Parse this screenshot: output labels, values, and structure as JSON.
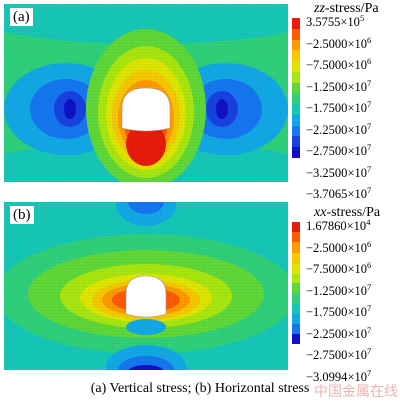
{
  "panels": [
    {
      "id": "a",
      "letter": "(a)",
      "legend_title": "zz-stress/Pa",
      "legend_title_italic": "zz",
      "legend_title_rest": "-stress/Pa",
      "labels": [
        {
          "mantissa": "3.5755",
          "exp": "5"
        },
        {
          "mantissa": "−2.5000",
          "exp": "6"
        },
        {
          "mantissa": "−7.5000",
          "exp": "6"
        },
        {
          "mantissa": "−1.2500",
          "exp": "7"
        },
        {
          "mantissa": "−1.7500",
          "exp": "7"
        },
        {
          "mantissa": "−2.2500",
          "exp": "7"
        },
        {
          "mantissa": "−2.7500",
          "exp": "7"
        },
        {
          "mantissa": "−3.2500",
          "exp": "7"
        },
        {
          "mantissa": "−3.7065",
          "exp": "7"
        }
      ],
      "colors": [
        "#e81b0c",
        "#ff5a00",
        "#ff9a00",
        "#f5c800",
        "#dde600",
        "#a8e610",
        "#5fd838",
        "#2fd07a",
        "#16c7b8",
        "#12a8e6",
        "#1577ef",
        "#1742e0",
        "#1010c8"
      ]
    },
    {
      "id": "b",
      "letter": "(b)",
      "legend_title": "xx-stress/Pa",
      "legend_title_italic": "xx",
      "legend_title_rest": "-stress/Pa",
      "labels": [
        {
          "mantissa": "1.67860",
          "exp": "4"
        },
        {
          "mantissa": "−2.5000",
          "exp": "6"
        },
        {
          "mantissa": "−7.5000",
          "exp": "6"
        },
        {
          "mantissa": "−1.2500",
          "exp": "7"
        },
        {
          "mantissa": "−1.7500",
          "exp": "7"
        },
        {
          "mantissa": "−2.2500",
          "exp": "7"
        },
        {
          "mantissa": "−2.7500",
          "exp": "7"
        },
        {
          "mantissa": "−3.0994",
          "exp": "7"
        }
      ],
      "colors": [
        "#e81b0c",
        "#ff5a00",
        "#ff9a00",
        "#f5c800",
        "#dde600",
        "#a8e610",
        "#5fd838",
        "#2fd07a",
        "#16c7b8",
        "#12a8e6",
        "#1577ef",
        "#1010c8"
      ]
    }
  ],
  "caption": "(a) Vertical stress; (b) Horizontal stress",
  "watermark": "中国金属在线"
}
